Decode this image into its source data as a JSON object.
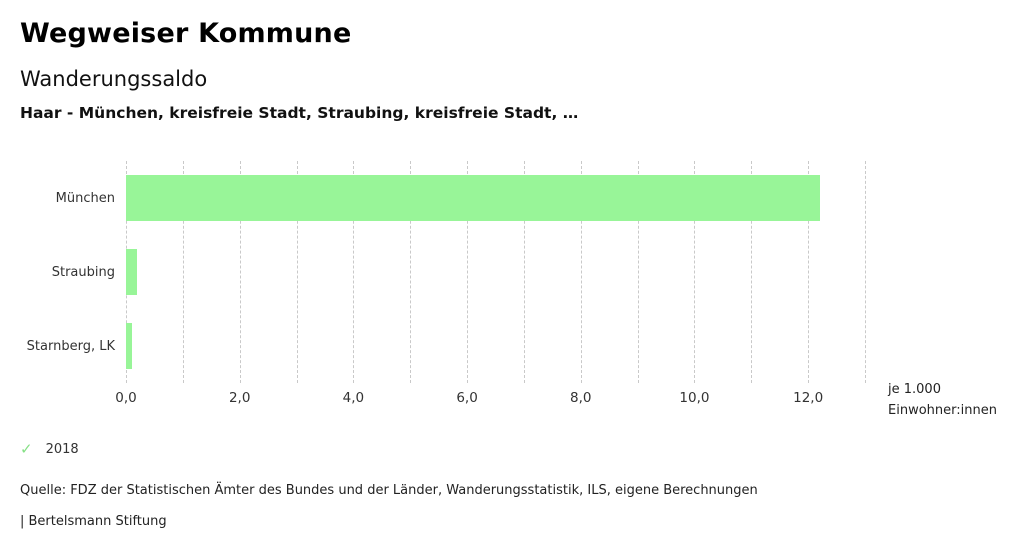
{
  "header": {
    "title": "Wegweiser Kommune",
    "subtitle": "Wanderungssaldo",
    "context": "Haar - München, kreisfreie Stadt, Straubing, kreisfreie Stadt, …"
  },
  "chart_data": {
    "type": "bar",
    "orientation": "horizontal",
    "title": "Wanderungssaldo",
    "categories": [
      "München",
      "Straubing",
      "Starnberg, LK"
    ],
    "series": [
      {
        "name": "2018",
        "values": [
          12.2,
          0.2,
          0.1
        ]
      }
    ],
    "xlabel": "je 1.000 Einwohner:innen",
    "xlim": [
      0,
      13
    ],
    "x_ticks": [
      0,
      2,
      4,
      6,
      8,
      10,
      12
    ],
    "x_tick_labels": [
      "0,0",
      "2,0",
      "4,0",
      "6,0",
      "8,0",
      "10,0",
      "12,0"
    ],
    "gridline_step": 1,
    "grid": "vertical-dashed",
    "legend_position": "bottom-left",
    "unit_label_lines": [
      "je 1.000",
      "Einwohner:innen"
    ],
    "bar_color": "#98f598"
  },
  "legend": {
    "check_glyph": "✓",
    "check_color": "#86e086",
    "label": "2018"
  },
  "footer": {
    "source": "Quelle: FDZ der Statistischen Ämter des Bundes und der Länder, Wanderungsstatistik, ILS, eigene Berechnungen",
    "attribution": "| Bertelsmann Stiftung"
  },
  "colors": {
    "bar": "#98f598",
    "gridline": "#c9c9c9",
    "text": "#222222",
    "axis_text": "#333333"
  }
}
